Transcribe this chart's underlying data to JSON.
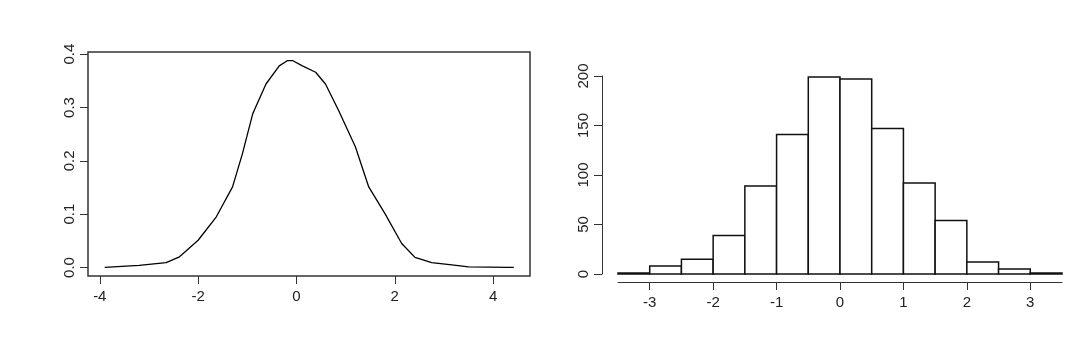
{
  "chart_data": [
    {
      "type": "line",
      "color": "#000000",
      "marker": "none",
      "xlim": [
        -4.24,
        4.75
      ],
      "ylim": [
        -0.016,
        0.404
      ],
      "xticks": [
        -4,
        -2,
        0,
        2,
        4
      ],
      "yticks": [
        {
          "value": 0,
          "label": "0.0"
        },
        0.1,
        0.2,
        0.3,
        0.4
      ],
      "x": [
        -3.9,
        -3.2,
        -2.65,
        -2.38,
        -2.0,
        -1.63,
        -1.3,
        -1.1,
        -0.89,
        -0.62,
        -0.35,
        -0.18,
        -0.08,
        0.12,
        0.39,
        0.59,
        0.86,
        1.2,
        1.47,
        1.8,
        2.14,
        2.41,
        2.75,
        3.16,
        3.5,
        4.42
      ],
      "values": [
        0.0,
        0.004,
        0.009,
        0.02,
        0.051,
        0.095,
        0.151,
        0.213,
        0.288,
        0.344,
        0.378,
        0.388,
        0.388,
        0.378,
        0.366,
        0.344,
        0.294,
        0.226,
        0.151,
        0.101,
        0.045,
        0.019,
        0.009,
        0.005,
        0.001,
        0.0
      ]
    },
    {
      "type": "histogram",
      "color": "#ffffff",
      "xlim": [
        -3.5,
        3.5
      ],
      "ylim": [
        0,
        200
      ],
      "xticks": [
        -3,
        -2,
        -1,
        0,
        1,
        2,
        3
      ],
      "yticks": [
        0,
        50,
        100,
        150,
        200
      ],
      "bins": [
        -3.5,
        -3.0,
        -2.5,
        -2.0,
        -1.5,
        -1.0,
        -0.5,
        0.0,
        0.5,
        1.0,
        1.5,
        2.0,
        2.5,
        3.0,
        3.5
      ],
      "values": [
        1,
        8,
        15,
        39,
        89,
        141,
        199,
        197,
        147,
        92,
        54,
        12,
        5,
        1
      ]
    }
  ]
}
